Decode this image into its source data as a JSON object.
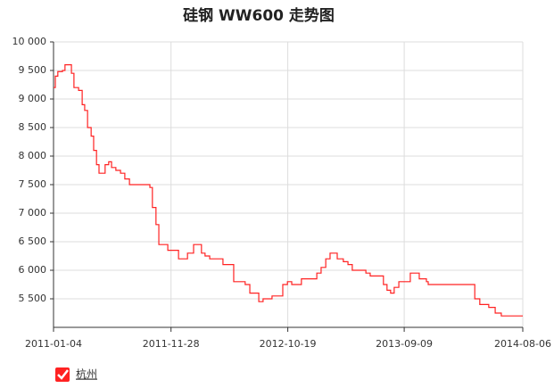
{
  "chart_data": {
    "type": "line",
    "title": "硅钢 WW600 走势图",
    "x": [
      "2011-01-04",
      "2011-01-09",
      "2011-01-16",
      "2011-01-29",
      "2011-02-05",
      "2011-02-15",
      "2011-02-23",
      "2011-03-02",
      "2011-03-15",
      "2011-03-25",
      "2011-04-01",
      "2011-04-09",
      "2011-04-19",
      "2011-04-26",
      "2011-05-04",
      "2011-05-11",
      "2011-05-21",
      "2011-05-28",
      "2011-06-07",
      "2011-06-15",
      "2011-06-27",
      "2011-07-10",
      "2011-07-22",
      "2011-08-04",
      "2011-09-23",
      "2011-09-30",
      "2011-10-07",
      "2011-10-17",
      "2011-10-25",
      "2011-11-11",
      "2011-11-19",
      "2011-12-09",
      "2011-12-19",
      "2011-12-31",
      "2012-01-13",
      "2012-01-25",
      "2012-01-30",
      "2012-02-11",
      "2012-02-21",
      "2012-03-02",
      "2012-03-15",
      "2012-04-09",
      "2012-04-21",
      "2012-05-11",
      "2012-05-21",
      "2012-06-10",
      "2012-06-22",
      "2012-07-05",
      "2012-07-17",
      "2012-07-30",
      "2012-08-11",
      "2012-08-29",
      "2012-09-05",
      "2012-09-23",
      "2012-10-05",
      "2012-10-18",
      "2012-10-30",
      "2012-11-14",
      "2012-11-26",
      "2012-12-21",
      "2013-01-08",
      "2013-01-20",
      "2013-02-02",
      "2013-02-14",
      "2013-03-01",
      "2013-03-06",
      "2013-03-23",
      "2013-04-05",
      "2013-04-17",
      "2013-05-25",
      "2013-06-06",
      "2013-07-04",
      "2013-07-13",
      "2013-07-23",
      "2013-08-02",
      "2013-08-12",
      "2013-08-25",
      "2013-09-14",
      "2013-09-26",
      "2013-10-16",
      "2013-10-21",
      "2013-11-10",
      "2013-11-15",
      "2014-03-15",
      "2014-03-25",
      "2014-04-08",
      "2014-05-03",
      "2014-05-21",
      "2014-06-07",
      "2014-08-06"
    ],
    "series": [
      {
        "name": "杭州",
        "color": "#ff2222",
        "values": [
          9200,
          9400,
          9480,
          9500,
          9600,
          9600,
          9450,
          9200,
          9150,
          8900,
          8800,
          8500,
          8350,
          8100,
          7850,
          7700,
          7700,
          7850,
          7900,
          7800,
          7750,
          7700,
          7600,
          7500,
          7500,
          7450,
          7100,
          6800,
          6450,
          6450,
          6350,
          6350,
          6200,
          6200,
          6300,
          6300,
          6450,
          6450,
          6300,
          6250,
          6200,
          6200,
          6100,
          6100,
          5800,
          5800,
          5750,
          5600,
          5600,
          5450,
          5500,
          5500,
          5550,
          5550,
          5750,
          5800,
          5750,
          5750,
          5850,
          5850,
          5950,
          6050,
          6200,
          6300,
          6300,
          6200,
          6150,
          6100,
          6000,
          5950,
          5900,
          5900,
          5750,
          5650,
          5600,
          5700,
          5800,
          5800,
          5950,
          5950,
          5850,
          5800,
          5750,
          5750,
          5500,
          5400,
          5350,
          5250,
          5200,
          5200
        ]
      }
    ],
    "xlim": [
      "2011-01-04",
      "2014-08-06"
    ],
    "xticks": [
      "2011-01-04",
      "2011-11-28",
      "2012-10-19",
      "2013-09-09",
      "2014-08-06"
    ],
    "ylim": [
      5000,
      10000
    ],
    "yticks": [
      {
        "value": 5500,
        "label": "5 500"
      },
      {
        "value": 6000,
        "label": "6 000"
      },
      {
        "value": 6500,
        "label": "6 500"
      },
      {
        "value": 7000,
        "label": "7 000"
      },
      {
        "value": 7500,
        "label": "7 500"
      },
      {
        "value": 8000,
        "label": "8 000"
      },
      {
        "value": 8500,
        "label": "8 500"
      },
      {
        "value": 9000,
        "label": "9 000"
      },
      {
        "value": 9500,
        "label": "9 500"
      },
      {
        "value": 10000,
        "label": "10 000"
      }
    ],
    "grid": true
  }
}
